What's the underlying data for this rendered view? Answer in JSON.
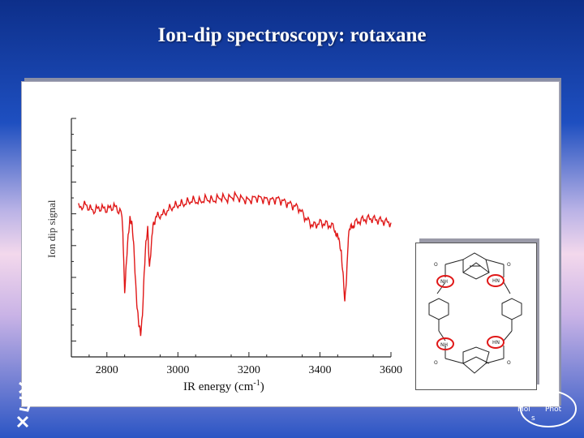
{
  "slide": {
    "title": "Ion-dip spectroscopy: rotaxane"
  },
  "chart_data": {
    "type": "line",
    "xlabel": "IR energy (cm-1)",
    "xlabel_main": "IR energy (cm",
    "xlabel_sup": "-1",
    "xlabel_close": ")",
    "ylabel": "Ion dip signal",
    "xlim": [
      2700,
      3600
    ],
    "x_ticks": [
      "2800",
      "3000",
      "3200",
      "3400",
      "3600"
    ],
    "x_tick_values": [
      2800,
      3000,
      3200,
      3400,
      3600
    ],
    "series": [
      {
        "color": "#e01818",
        "x": [
          2720,
          2740,
          2760,
          2780,
          2800,
          2820,
          2840,
          2845,
          2850,
          2855,
          2860,
          2865,
          2870,
          2875,
          2880,
          2885,
          2890,
          2895,
          2900,
          2905,
          2910,
          2915,
          2920,
          2925,
          2930,
          2940,
          2960,
          2980,
          3000,
          3020,
          3040,
          3060,
          3080,
          3100,
          3120,
          3140,
          3160,
          3180,
          3200,
          3220,
          3240,
          3260,
          3280,
          3300,
          3320,
          3340,
          3360,
          3380,
          3400,
          3420,
          3440,
          3450,
          3460,
          3465,
          3470,
          3475,
          3480,
          3490,
          3500,
          3520,
          3540,
          3560,
          3580,
          3600
        ],
        "y": [
          1.0,
          1.02,
          0.98,
          1.0,
          0.99,
          1.01,
          0.97,
          0.85,
          0.45,
          0.62,
          0.8,
          0.95,
          0.9,
          0.75,
          0.55,
          0.35,
          0.2,
          0.15,
          0.3,
          0.55,
          0.75,
          0.88,
          0.6,
          0.72,
          0.9,
          0.94,
          0.96,
          1.0,
          1.02,
          1.03,
          1.05,
          1.04,
          1.06,
          1.05,
          1.07,
          1.06,
          1.08,
          1.06,
          1.05,
          1.07,
          1.06,
          1.05,
          1.06,
          1.04,
          1.02,
          1.0,
          0.93,
          0.88,
          0.9,
          0.89,
          0.87,
          0.8,
          0.72,
          0.55,
          0.35,
          0.55,
          0.82,
          0.88,
          0.9,
          0.92,
          0.93,
          0.92,
          0.91,
          0.9
        ]
      }
    ]
  },
  "molecule": {
    "labels": [
      "NH",
      "HN",
      "NH",
      "HN",
      "O",
      "O",
      "O",
      "O"
    ]
  },
  "logo": {
    "text_line1": "Mol",
    "text_line2": "Phot",
    "text_line3": "s"
  }
}
